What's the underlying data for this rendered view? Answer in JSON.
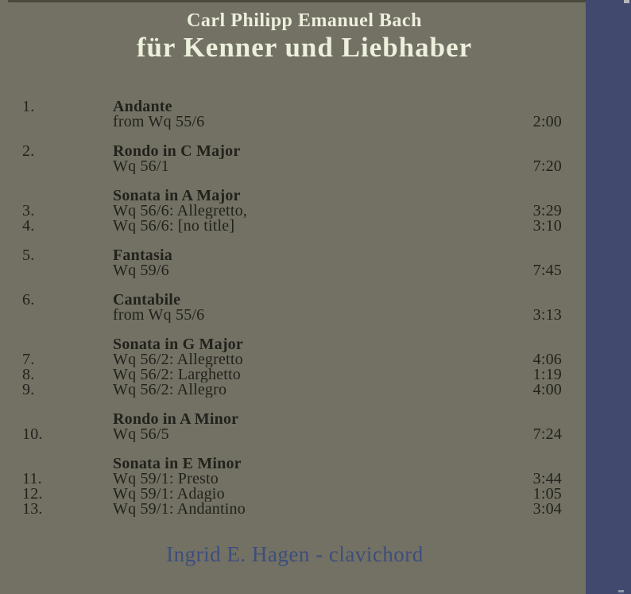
{
  "album": {
    "artist_line": "Carl Philipp Emanuel Bach",
    "title_line": "für Kenner und Liebhaber",
    "credit_line": "Ingrid E. Hagen - clavichord"
  },
  "colors": {
    "background": "#727164",
    "spine_stripe": "#414a6e",
    "title_text": "#edf0dc",
    "track_text": "#22221c",
    "credit_text": "#3e4d7d"
  },
  "track_groups": [
    {
      "lines": [
        {
          "num": "1.",
          "text": "Andante",
          "bold": true,
          "time": ""
        },
        {
          "num": "",
          "text": "from Wq 55/6",
          "bold": false,
          "time": "2:00"
        }
      ]
    },
    {
      "lines": [
        {
          "num": "2.",
          "text": "Rondo in C Major",
          "bold": true,
          "time": ""
        },
        {
          "num": "",
          "text": "Wq 56/1",
          "bold": false,
          "time": "7:20"
        }
      ]
    },
    {
      "lines": [
        {
          "num": "",
          "text": "Sonata in A Major",
          "bold": true,
          "time": ""
        },
        {
          "num": "3.",
          "text": "Wq 56/6: Allegretto,",
          "bold": false,
          "time": "3:29"
        },
        {
          "num": "4.",
          "text": "Wq 56/6: [no title]",
          "bold": false,
          "time": "3:10"
        }
      ]
    },
    {
      "lines": [
        {
          "num": "5.",
          "text": "Fantasia",
          "bold": true,
          "time": ""
        },
        {
          "num": "",
          "text": "Wq 59/6",
          "bold": false,
          "time": "7:45"
        }
      ]
    },
    {
      "lines": [
        {
          "num": "6.",
          "text": "Cantabile",
          "bold": true,
          "time": ""
        },
        {
          "num": "",
          "text": "from Wq 55/6",
          "bold": false,
          "time": "3:13"
        }
      ]
    },
    {
      "lines": [
        {
          "num": "",
          "text": "Sonata in G Major",
          "bold": true,
          "time": ""
        },
        {
          "num": "7.",
          "text": "Wq 56/2: Allegretto",
          "bold": false,
          "time": "4:06"
        },
        {
          "num": "8.",
          "text": "Wq 56/2: Larghetto",
          "bold": false,
          "time": "1:19"
        },
        {
          "num": "9.",
          "text": "Wq 56/2: Allegro",
          "bold": false,
          "time": "4:00"
        }
      ]
    },
    {
      "lines": [
        {
          "num": "",
          "text": "Rondo in A Minor",
          "bold": true,
          "time": ""
        },
        {
          "num": "10.",
          "text": "Wq 56/5",
          "bold": false,
          "time": "7:24"
        }
      ]
    },
    {
      "lines": [
        {
          "num": "",
          "text": "Sonata in E Minor",
          "bold": true,
          "time": ""
        },
        {
          "num": "11.",
          "text": "Wq 59/1: Presto",
          "bold": false,
          "time": "3:44"
        },
        {
          "num": "12.",
          "text": "Wq 59/1: Adagio",
          "bold": false,
          "time": "1:05"
        },
        {
          "num": "13.",
          "text": "Wq 59/1: Andantino",
          "bold": false,
          "time": "3:04"
        }
      ]
    }
  ]
}
